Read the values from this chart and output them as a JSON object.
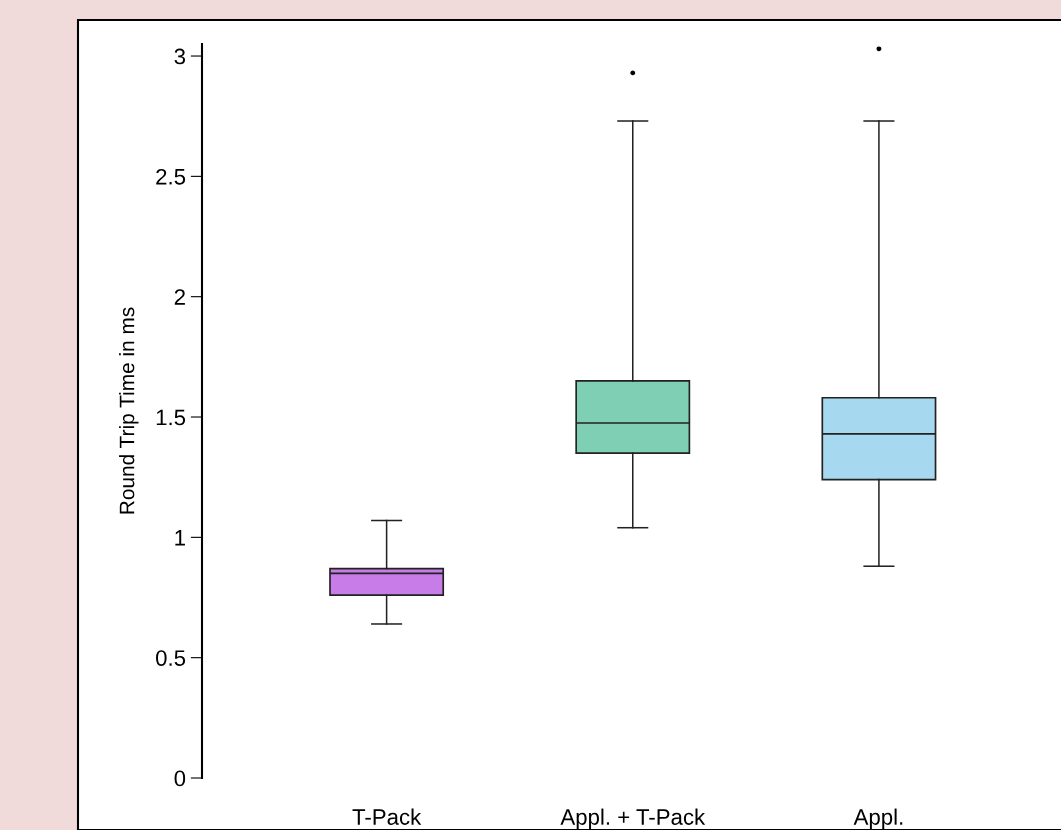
{
  "chart_data": {
    "type": "box",
    "ylabel": "Round Trip Time in ms",
    "categories": [
      "T-Pack",
      "Appl. + T-Pack",
      "Appl."
    ],
    "colors": [
      "#c77ce8",
      "#7fcfb4",
      "#a6d8ef"
    ],
    "boxes": [
      {
        "low": 0.64,
        "q1": 0.76,
        "median": 0.85,
        "q3": 0.87,
        "high": 1.07
      },
      {
        "low": 1.04,
        "q1": 1.35,
        "median": 1.475,
        "q3": 1.65,
        "high": 2.73,
        "outliers": [
          2.93
        ]
      },
      {
        "low": 0.88,
        "q1": 1.24,
        "median": 1.43,
        "q3": 1.58,
        "high": 2.73,
        "outliers": [
          3.03
        ]
      }
    ],
    "ylim": [
      0,
      3.05
    ],
    "yticks": [
      0,
      0.5,
      1,
      1.5,
      2,
      2.5,
      3
    ],
    "grid": false
  }
}
